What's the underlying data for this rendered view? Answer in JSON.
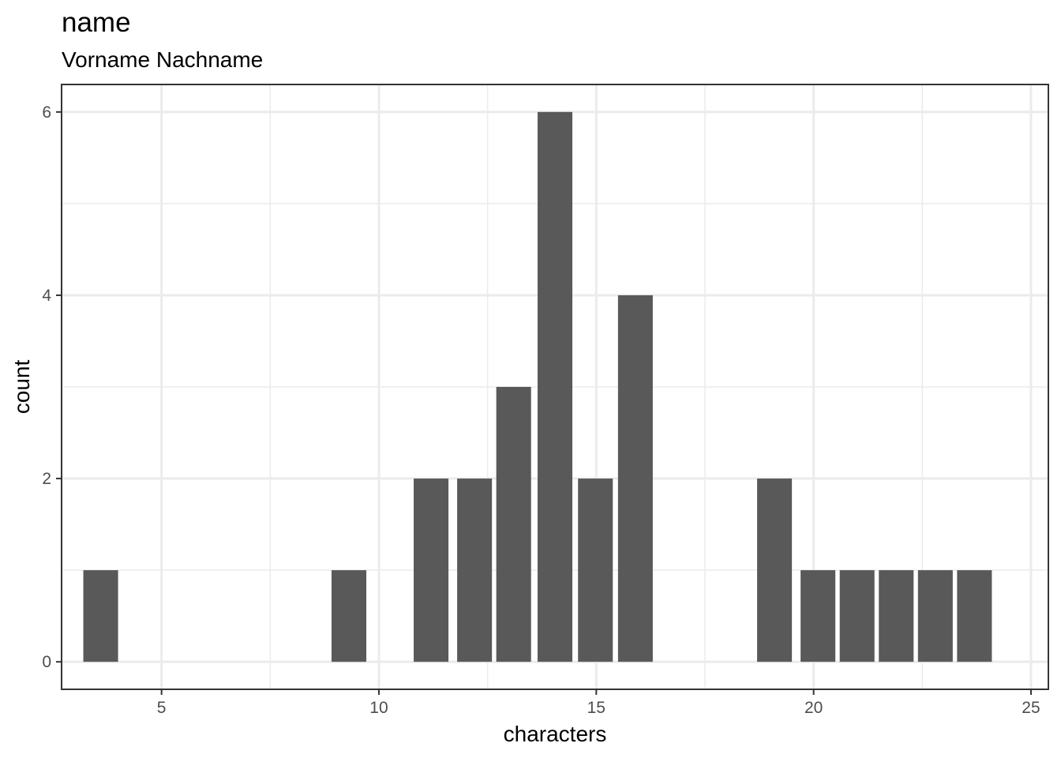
{
  "chart_data": {
    "type": "bar",
    "title": "name",
    "subtitle": "Vorname Nachname",
    "xlabel": "characters",
    "ylabel": "count",
    "xlim": [
      2.7,
      25.4
    ],
    "ylim": [
      -0.3,
      6.3
    ],
    "x_breaks": [
      5,
      10,
      15,
      20,
      25
    ],
    "x_minor_breaks": [
      7.5,
      12.5,
      17.5,
      22.5
    ],
    "y_breaks": [
      0,
      2,
      4,
      6
    ],
    "y_minor_breaks": [
      1,
      3,
      5
    ],
    "grid": true,
    "bar_color": "#595959",
    "bars": [
      {
        "x": 3.6,
        "width": 0.8,
        "value": 1
      },
      {
        "x": 9.31,
        "width": 0.8,
        "value": 1
      },
      {
        "x": 11.2,
        "width": 0.8,
        "value": 2
      },
      {
        "x": 12.2,
        "width": 0.8,
        "value": 2
      },
      {
        "x": 13.1,
        "width": 0.8,
        "value": 3
      },
      {
        "x": 14.05,
        "width": 0.8,
        "value": 6
      },
      {
        "x": 14.98,
        "width": 0.8,
        "value": 2
      },
      {
        "x": 15.9,
        "width": 0.8,
        "value": 4
      },
      {
        "x": 19.1,
        "width": 0.8,
        "value": 2
      },
      {
        "x": 20.1,
        "width": 0.8,
        "value": 1
      },
      {
        "x": 21.0,
        "width": 0.8,
        "value": 1
      },
      {
        "x": 21.9,
        "width": 0.8,
        "value": 1
      },
      {
        "x": 22.8,
        "width": 0.8,
        "value": 1
      },
      {
        "x": 23.7,
        "width": 0.8,
        "value": 1
      }
    ]
  }
}
